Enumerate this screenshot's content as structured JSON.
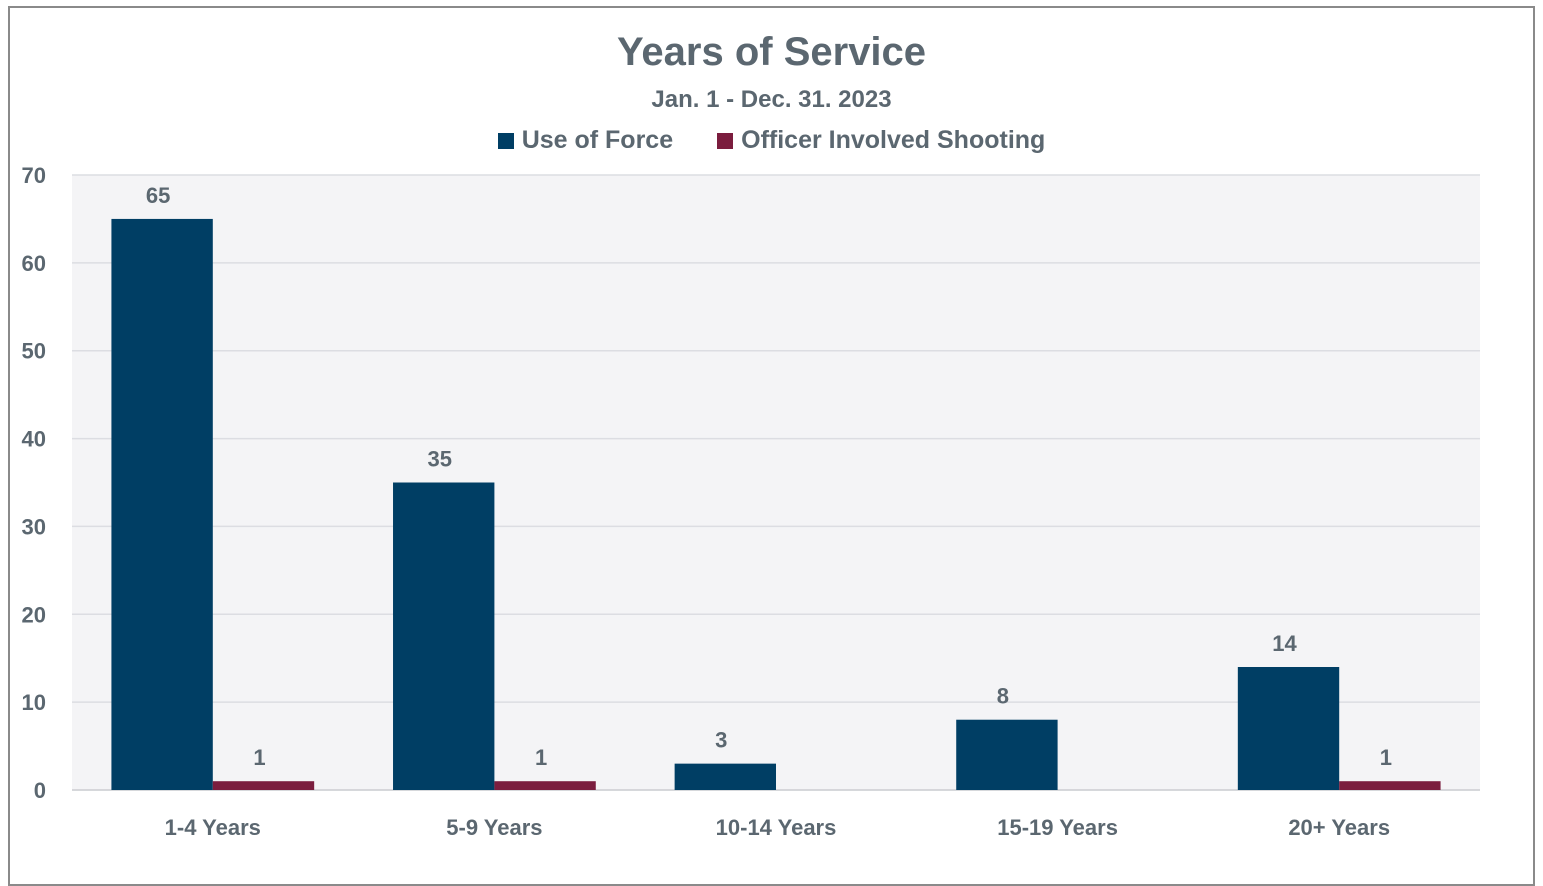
{
  "chart_data": {
    "type": "bar",
    "title": "Years of Service",
    "subtitle": "Jan. 1 - Dec. 31. 2023",
    "xlabel": "",
    "ylabel": "",
    "ylim": [
      0,
      70
    ],
    "yticks": [
      "0",
      "10",
      "20",
      "30",
      "40",
      "50",
      "60",
      "70"
    ],
    "categories": [
      "1-4 Years",
      "5-9 Years",
      "10-14 Years",
      "15-19 Years",
      "20+ Years"
    ],
    "series": [
      {
        "name": "Use of Force",
        "color": "#003e64",
        "values": [
          65,
          35,
          3,
          8,
          14
        ],
        "labels": [
          "65",
          "35",
          "3",
          "8",
          "14"
        ]
      },
      {
        "name": "Officer Involved Shooting",
        "color": "#7b1d3e",
        "values": [
          1,
          1,
          0,
          0,
          1
        ],
        "labels": [
          "1",
          "1",
          "",
          "",
          "1"
        ]
      }
    ],
    "legend_position": "top-center",
    "grid": true,
    "plot_background": "#f4f4f6"
  }
}
